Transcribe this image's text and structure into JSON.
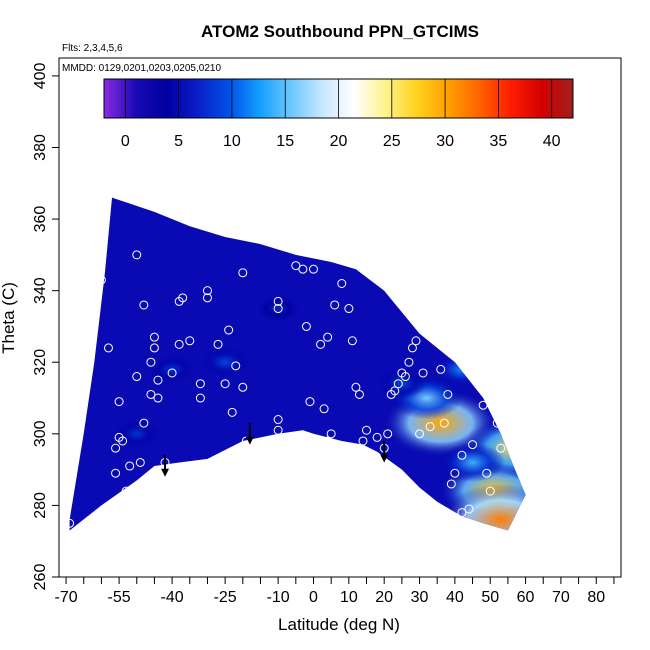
{
  "chart_data": {
    "type": "heatmap",
    "title": "ATOM2 Southbound PPN_GTCIMS",
    "annotations": {
      "flights": "Flts: 2,3,4,5,6",
      "dates": "MMDD: 0129,0201,0203,0205,0210"
    },
    "xlabel": "Latitude (deg N)",
    "ylabel": "Theta (C)",
    "xlim": [
      -72,
      87
    ],
    "ylim": [
      260,
      405
    ],
    "x_ticks": [
      -70,
      -55,
      -40,
      -25,
      -10,
      0,
      10,
      20,
      30,
      40,
      50,
      60,
      70,
      80
    ],
    "x_tick_labels": [
      "-70",
      "-55",
      "-40",
      "-25",
      "-10",
      "0",
      "10",
      "20",
      "30",
      "40",
      "50",
      "60",
      "70",
      "80"
    ],
    "x_minor_ticks": [
      -65,
      -60,
      -50,
      -45,
      -35,
      -30,
      -20,
      -15,
      -5,
      5,
      15,
      25,
      35,
      45,
      55,
      65,
      75,
      85
    ],
    "y_ticks": [
      260,
      280,
      300,
      320,
      340,
      360,
      380,
      400
    ],
    "y_tick_labels": [
      "260",
      "280",
      "300",
      "320",
      "340",
      "360",
      "380",
      "400"
    ],
    "colorbar": {
      "range": [
        -2,
        42
      ],
      "ticks": [
        0,
        5,
        10,
        15,
        20,
        25,
        30,
        35,
        40
      ],
      "tick_labels": [
        "0",
        "5",
        "10",
        "15",
        "20",
        "25",
        "30",
        "35",
        "40"
      ],
      "colors": [
        "#8a2be2",
        "#1a0ab5",
        "#0000a0",
        "#0a1ec8",
        "#0050e6",
        "#14a0ff",
        "#6ec8ff",
        "#c8e8ff",
        "#ffffff",
        "#fff38c",
        "#ffd21e",
        "#ffa000",
        "#ff6400",
        "#ff1e00",
        "#d20000",
        "#a01e1e"
      ]
    },
    "arrows": [
      {
        "lat": -42,
        "theta_top": 294,
        "theta_bottom": 288
      },
      {
        "lat": -18,
        "theta_top": 303,
        "theta_bottom": 297
      },
      {
        "lat": 20,
        "theta_top": 298,
        "theta_bottom": 292
      }
    ],
    "curtain": {
      "bottom": [
        [
          -69,
          273
        ],
        [
          -60,
          280
        ],
        [
          -50,
          287
        ],
        [
          -45,
          291
        ],
        [
          -38,
          292
        ],
        [
          -30,
          293
        ],
        [
          -20,
          298
        ],
        [
          -10,
          300
        ],
        [
          -3,
          301
        ],
        [
          0,
          300
        ],
        [
          8,
          298
        ],
        [
          14,
          297
        ],
        [
          18,
          295
        ],
        [
          25,
          290
        ],
        [
          30,
          285
        ],
        [
          35,
          281
        ],
        [
          42,
          277
        ],
        [
          48,
          275
        ],
        [
          55,
          273
        ]
      ],
      "top": [
        [
          -69,
          276
        ],
        [
          -65,
          300
        ],
        [
          -62,
          320
        ],
        [
          -59,
          345
        ],
        [
          -57,
          366
        ],
        [
          -45,
          362
        ],
        [
          -35,
          358
        ],
        [
          -25,
          355
        ],
        [
          -15,
          353
        ],
        [
          -5,
          350
        ],
        [
          5,
          348
        ],
        [
          12,
          346
        ],
        [
          20,
          340
        ],
        [
          30,
          328
        ],
        [
          40,
          320
        ],
        [
          48,
          310
        ],
        [
          53,
          300
        ],
        [
          57,
          290
        ],
        [
          60,
          283
        ]
      ]
    },
    "hotspots": [
      {
        "lat": 36,
        "theta": 303,
        "value": 30
      },
      {
        "lat": 51,
        "theta": 284,
        "value": 28
      },
      {
        "lat": 53,
        "theta": 276,
        "value": 32
      },
      {
        "lat": 57,
        "theta": 296,
        "value": 26
      },
      {
        "lat": 32,
        "theta": 310,
        "value": 16
      },
      {
        "lat": 45,
        "theta": 292,
        "value": 14
      },
      {
        "lat": 42,
        "theta": 318,
        "value": 12
      },
      {
        "lat": 25,
        "theta": 314,
        "value": 9
      },
      {
        "lat": -25,
        "theta": 320,
        "value": 9
      },
      {
        "lat": -40,
        "theta": 318,
        "value": 8
      },
      {
        "lat": -50,
        "theta": 300,
        "value": 8
      },
      {
        "lat": -10,
        "theta": 335,
        "value": 7
      }
    ],
    "observations": [
      [
        -69,
        289
      ],
      [
        -69,
        275
      ],
      [
        -58,
        324
      ],
      [
        -56,
        296
      ],
      [
        -55,
        309
      ],
      [
        -55,
        299
      ],
      [
        -54,
        298
      ],
      [
        -53,
        284
      ],
      [
        -55,
        281
      ],
      [
        -56,
        289
      ],
      [
        -52,
        291
      ],
      [
        -50,
        316
      ],
      [
        -49,
        292
      ],
      [
        -48,
        303
      ],
      [
        -46,
        320
      ],
      [
        -46,
        311
      ],
      [
        -45,
        324
      ],
      [
        -45,
        327
      ],
      [
        -44,
        315
      ],
      [
        -44,
        310
      ],
      [
        -42,
        292
      ],
      [
        -40,
        317
      ],
      [
        -38,
        325
      ],
      [
        -37,
        338
      ],
      [
        -35,
        326
      ],
      [
        -32,
        314
      ],
      [
        -32,
        310
      ],
      [
        -30,
        338
      ],
      [
        -27,
        325
      ],
      [
        -25,
        314
      ],
      [
        -24,
        329
      ],
      [
        -23,
        306
      ],
      [
        -22,
        319
      ],
      [
        -20,
        313
      ],
      [
        -19,
        298
      ],
      [
        -14,
        295
      ],
      [
        -12,
        298
      ],
      [
        -10,
        337
      ],
      [
        -10,
        335
      ],
      [
        -10,
        304
      ],
      [
        -10,
        301
      ],
      [
        -5,
        347
      ],
      [
        -3,
        346
      ],
      [
        -2,
        330
      ],
      [
        -1,
        309
      ],
      [
        2,
        325
      ],
      [
        3,
        307
      ],
      [
        4,
        327
      ],
      [
        4,
        298
      ],
      [
        5,
        300
      ],
      [
        6,
        336
      ],
      [
        8,
        342
      ],
      [
        10,
        335
      ],
      [
        11,
        326
      ],
      [
        12,
        313
      ],
      [
        13,
        311
      ],
      [
        14,
        298
      ],
      [
        15,
        301
      ],
      [
        18,
        299
      ],
      [
        20,
        296
      ],
      [
        21,
        300
      ],
      [
        22,
        311
      ],
      [
        23,
        312
      ],
      [
        24,
        314
      ],
      [
        25,
        317
      ],
      [
        26,
        316
      ],
      [
        27,
        320
      ],
      [
        28,
        324
      ],
      [
        29,
        326
      ],
      [
        30,
        300
      ],
      [
        31,
        317
      ],
      [
        33,
        302
      ],
      [
        36,
        318
      ],
      [
        37,
        303
      ],
      [
        38,
        311
      ],
      [
        39,
        286
      ],
      [
        40,
        289
      ],
      [
        42,
        294
      ],
      [
        42,
        278
      ],
      [
        44,
        279
      ],
      [
        45,
        297
      ],
      [
        48,
        308
      ],
      [
        49,
        289
      ],
      [
        50,
        284
      ],
      [
        52,
        303
      ],
      [
        53,
        296
      ],
      [
        55,
        299
      ],
      [
        57,
        294
      ],
      [
        -60,
        343
      ],
      [
        -50,
        350
      ],
      [
        -48,
        336
      ],
      [
        -30,
        340
      ],
      [
        0,
        346
      ],
      [
        -20,
        345
      ],
      [
        -38,
        337
      ]
    ]
  }
}
